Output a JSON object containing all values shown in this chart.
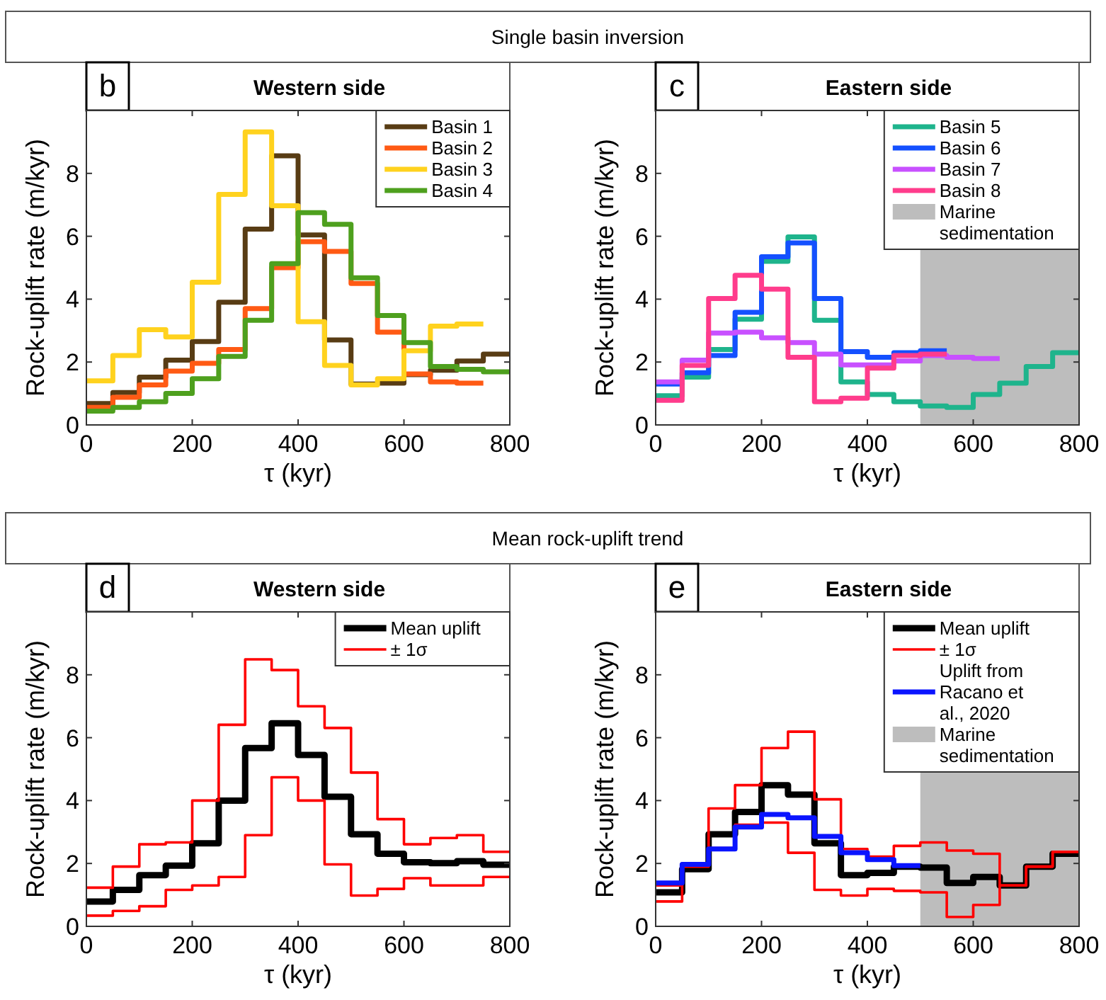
{
  "chart_data": [
    {
      "type": "step",
      "subtitle": "Single basin inversion",
      "title": "Western side",
      "annotations": [
        "b"
      ],
      "xlabel": "τ (kyr)",
      "ylabel": "Rock-uplift rate (m/kyr)",
      "xlim": [
        0,
        800
      ],
      "xticks": [
        0,
        200,
        400,
        600,
        800
      ],
      "ylim": [
        0,
        10
      ],
      "yticks": [
        0,
        2,
        4,
        6,
        8
      ],
      "legend": "top right",
      "grid": false,
      "x": [
        0,
        50,
        100,
        150,
        200,
        250,
        300,
        350,
        400,
        450,
        500,
        550,
        600,
        650,
        700,
        750,
        800
      ],
      "series": [
        {
          "name": "Basin 1",
          "color": "#583c14",
          "values": [
            0.68,
            1.03,
            1.52,
            2.06,
            2.65,
            3.9,
            6.23,
            8.56,
            6.04,
            2.7,
            1.3,
            1.33,
            1.6,
            1.74,
            2.03,
            2.25,
            2.25
          ]
        },
        {
          "name": "Basin 2",
          "color": "#ff5a14",
          "values": [
            0.56,
            0.88,
            1.27,
            1.71,
            1.96,
            2.4,
            3.7,
            5.0,
            5.83,
            5.52,
            4.5,
            2.95,
            1.62,
            1.37,
            1.33,
            1.33,
            null
          ]
        },
        {
          "name": "Basin 3",
          "color": "#ffd21e",
          "values": [
            1.4,
            2.21,
            3.03,
            2.8,
            4.54,
            7.33,
            9.32,
            6.97,
            3.28,
            1.89,
            1.27,
            1.47,
            2.36,
            3.14,
            3.21,
            3.21,
            null
          ]
        },
        {
          "name": "Basin 4",
          "color": "#4ea01e",
          "values": [
            0.44,
            0.56,
            0.74,
            1.0,
            1.47,
            2.18,
            3.33,
            5.13,
            6.75,
            6.38,
            4.68,
            3.48,
            2.62,
            1.86,
            1.77,
            1.69,
            1.69
          ]
        }
      ]
    },
    {
      "type": "step",
      "title": "Eastern side",
      "annotations": [
        "c"
      ],
      "xlabel": "τ (kyr)",
      "ylabel": "Rock-uplift rate (m/kyr)",
      "xlim": [
        0,
        800
      ],
      "xticks": [
        0,
        200,
        400,
        600,
        800
      ],
      "ylim": [
        0,
        10
      ],
      "yticks": [
        0,
        2,
        4,
        6,
        8
      ],
      "legend": "top right",
      "grid": false,
      "x": [
        0,
        50,
        100,
        150,
        200,
        250,
        300,
        350,
        400,
        450,
        500,
        550,
        600,
        650,
        700,
        750,
        800
      ],
      "bands": [
        {
          "axis": "x",
          "from": 500,
          "to": 800,
          "label": "Marine sedimentation",
          "color": "#bdbdbd"
        }
      ],
      "series": [
        {
          "name": "Basin 5",
          "color": "#1eb48c",
          "values": [
            0.93,
            1.52,
            2.4,
            3.36,
            5.2,
            5.98,
            3.33,
            1.37,
            0.97,
            0.74,
            0.6,
            0.56,
            0.97,
            1.33,
            1.86,
            2.3,
            2.3
          ]
        },
        {
          "name": "Basin 6",
          "color": "#1450ff",
          "values": [
            1.3,
            1.66,
            2.21,
            3.58,
            5.35,
            5.79,
            4.02,
            2.33,
            2.15,
            2.3,
            2.36,
            2.36,
            null,
            null,
            null,
            null,
            null
          ]
        },
        {
          "name": "Basin 7",
          "color": "#c850ff",
          "values": [
            1.37,
            2.06,
            2.92,
            2.95,
            2.77,
            2.62,
            2.25,
            1.91,
            1.91,
            2.03,
            2.21,
            2.15,
            2.11,
            2.11,
            null,
            null,
            null
          ]
        },
        {
          "name": "Basin 8",
          "color": "#ff3c8c",
          "values": [
            0.78,
            1.89,
            4.02,
            4.76,
            4.32,
            2.15,
            0.74,
            0.85,
            1.81,
            2.21,
            2.25,
            2.25,
            null,
            null,
            null,
            null,
            null
          ]
        }
      ]
    },
    {
      "type": "step",
      "subtitle": "Mean rock-uplift trend",
      "title": "Western side",
      "annotations": [
        "d"
      ],
      "xlabel": "τ (kyr)",
      "ylabel": "Rock-uplift rate (m/kyr)",
      "xlim": [
        0,
        800
      ],
      "xticks": [
        0,
        200,
        400,
        600,
        800
      ],
      "ylim": [
        0,
        10
      ],
      "yticks": [
        0,
        2,
        4,
        6,
        8
      ],
      "legend": "top right",
      "grid": false,
      "x": [
        0,
        50,
        100,
        150,
        200,
        250,
        300,
        350,
        400,
        450,
        500,
        550,
        600,
        650,
        700,
        750,
        800
      ],
      "series": [
        {
          "name": "Mean uplift",
          "color": "#000000",
          "values": [
            0.79,
            1.16,
            1.63,
            1.93,
            2.64,
            4.0,
            5.67,
            6.46,
            5.45,
            4.12,
            2.93,
            2.31,
            2.04,
            2.01,
            2.07,
            1.96,
            1.96
          ]
        },
        {
          "name": "± 1σ",
          "color": "#ff0000",
          "values": [
            1.23,
            1.9,
            2.61,
            2.67,
            4.0,
            6.41,
            8.49,
            8.15,
            7.0,
            6.31,
            4.89,
            3.41,
            2.61,
            2.81,
            2.9,
            2.37,
            2.37
          ]
        },
        {
          "color": "#ff0000",
          "values": [
            0.34,
            0.49,
            0.64,
            1.16,
            1.3,
            1.57,
            2.9,
            4.74,
            4.0,
            1.97,
            0.98,
            1.19,
            1.53,
            1.3,
            1.3,
            1.57,
            1.57
          ]
        }
      ]
    },
    {
      "type": "step",
      "title": "Eastern side",
      "annotations": [
        "e"
      ],
      "xlabel": "τ (kyr)",
      "ylabel": "Rock-uplift rate (m/kyr)",
      "xlim": [
        0,
        800
      ],
      "xticks": [
        0,
        200,
        400,
        600,
        800
      ],
      "ylim": [
        0,
        10
      ],
      "yticks": [
        0,
        2,
        4,
        6,
        8
      ],
      "legend": "top right",
      "grid": false,
      "x": [
        0,
        50,
        100,
        150,
        200,
        250,
        300,
        350,
        400,
        450,
        500,
        550,
        600,
        650,
        700,
        750,
        800
      ],
      "bands": [
        {
          "axis": "x",
          "from": 500,
          "to": 800,
          "label": "Marine sedimentation",
          "color": "#bdbdbd"
        }
      ],
      "series": [
        {
          "name": "Mean uplift",
          "color": "#000000",
          "values": [
            1.08,
            1.82,
            2.93,
            3.64,
            4.49,
            4.19,
            2.64,
            1.63,
            1.7,
            1.9,
            1.87,
            1.38,
            1.57,
            1.3,
            1.9,
            2.31,
            2.31
          ]
        },
        {
          "name": "± 1σ",
          "color": "#ff0000",
          "values": [
            1.3,
            2.01,
            3.75,
            4.49,
            5.67,
            6.19,
            4.04,
            2.46,
            2.22,
            2.56,
            2.67,
            2.41,
            2.31,
            1.3,
            1.9,
            2.37,
            2.37
          ]
        },
        {
          "color": "#ff0000",
          "values": [
            0.79,
            1.9,
            2.49,
            3.23,
            3.3,
            2.34,
            1.16,
            0.98,
            1.19,
            1.13,
            1.08,
            0.3,
            0.68,
            1.3,
            1.9,
            2.37,
            2.37
          ]
        },
        {
          "name": "Uplift from Racano et al., 2020",
          "color": "#0a14ff",
          "values": [
            1.38,
            1.97,
            2.46,
            3.16,
            3.56,
            3.45,
            2.86,
            2.34,
            2.12,
            1.93,
            1.93,
            null,
            null,
            null,
            null,
            null,
            null
          ]
        }
      ]
    }
  ]
}
